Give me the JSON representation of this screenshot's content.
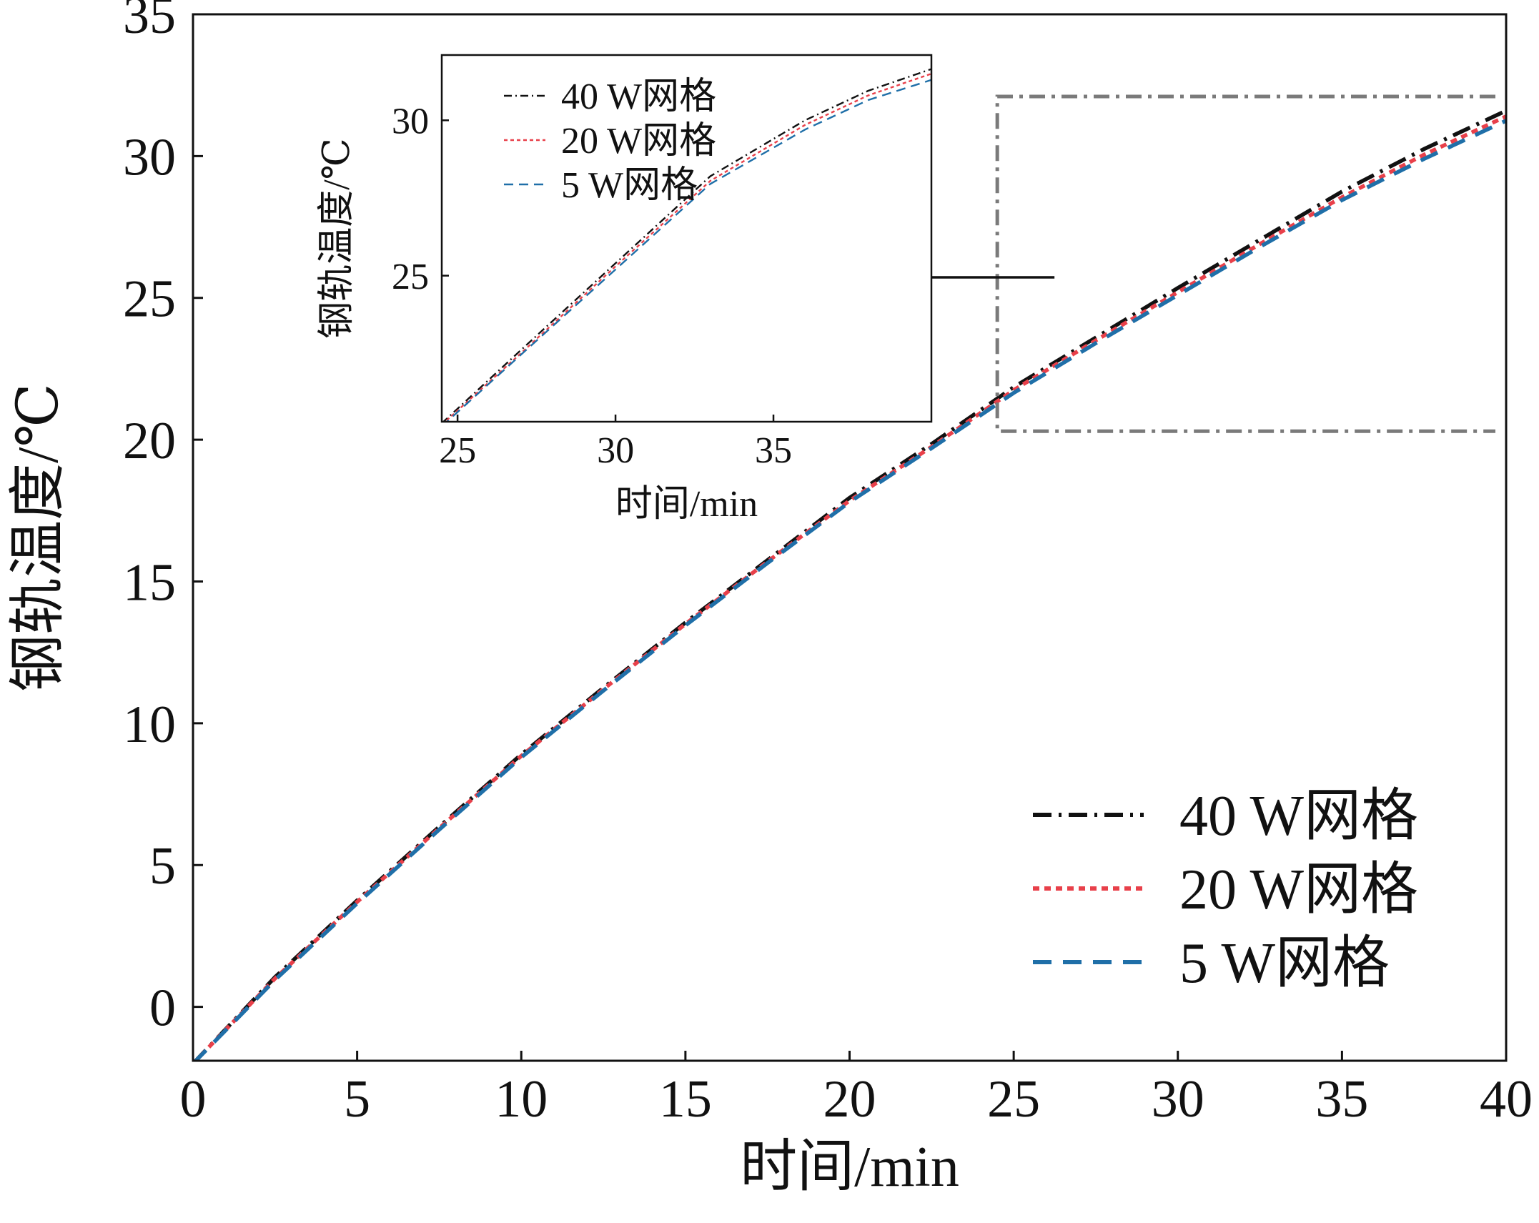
{
  "chart_data": [
    {
      "type": "line",
      "role": "main",
      "xlabel": "时间/min",
      "ylabel": "钢轨温度/℃",
      "xlim": [
        0,
        40
      ],
      "ylim": [
        -1.9,
        35
      ],
      "xticks": [
        "0",
        "5",
        "10",
        "15",
        "20",
        "25",
        "30",
        "35",
        "40"
      ],
      "yticks": [
        "0",
        "5",
        "10",
        "15",
        "20",
        "25",
        "30",
        "35"
      ],
      "legend_position": "bottom-right",
      "series": [
        {
          "name": "40 W网格",
          "color": "#111111",
          "style": "dash-dot",
          "x": [
            0,
            2.5,
            5,
            7.5,
            10,
            12.5,
            15,
            17.5,
            20,
            22.5,
            25,
            27.5,
            30,
            32.5,
            35,
            37.5,
            40
          ],
          "y": [
            -2.0,
            1.05,
            3.75,
            6.35,
            8.9,
            11.25,
            13.55,
            15.75,
            17.95,
            19.85,
            21.85,
            23.6,
            25.35,
            27.05,
            28.75,
            30.25,
            31.6
          ]
        },
        {
          "name": "20 W网格",
          "color": "#e8404a",
          "style": "dotted",
          "x": [
            0,
            2.5,
            5,
            7.5,
            10,
            12.5,
            15,
            17.5,
            20,
            22.5,
            25,
            27.5,
            30,
            32.5,
            35,
            37.5,
            40
          ],
          "y": [
            -2.0,
            1.0,
            3.7,
            6.3,
            8.85,
            11.2,
            13.5,
            15.7,
            17.85,
            19.75,
            21.75,
            23.5,
            25.2,
            26.9,
            28.55,
            30.05,
            31.4
          ]
        },
        {
          "name": "5 W网格",
          "color": "#1f6fa8",
          "style": "dashed",
          "x": [
            0,
            2.5,
            5,
            7.5,
            10,
            12.5,
            15,
            17.5,
            20,
            22.5,
            25,
            27.5,
            30,
            32.5,
            35,
            37.5,
            40
          ],
          "y": [
            -2.0,
            0.95,
            3.65,
            6.25,
            8.8,
            11.15,
            13.45,
            15.65,
            17.8,
            19.7,
            21.65,
            23.4,
            25.1,
            26.8,
            28.45,
            29.9,
            31.25
          ]
        }
      ],
      "zoom_region": {
        "x": [
          24.5,
          40
        ],
        "y": [
          20.3,
          32.1
        ]
      }
    },
    {
      "type": "line",
      "role": "inset",
      "xlabel": "时间/min",
      "ylabel": "钢轨温度/℃",
      "xlim": [
        24.5,
        40
      ],
      "ylim": [
        20.3,
        32.1
      ],
      "xticks": [
        "25",
        "30",
        "35"
      ],
      "yticks": [
        "25",
        "30"
      ],
      "legend_position": "top-left",
      "series": [
        {
          "name": "40 W网格",
          "color": "#111111",
          "style": "dash-dot",
          "x": [
            24.5,
            27,
            30,
            33,
            36,
            38,
            40
          ],
          "y": [
            20.25,
            22.6,
            25.4,
            28.2,
            30.0,
            30.95,
            31.65
          ]
        },
        {
          "name": "20 W网格",
          "color": "#e8404a",
          "style": "dotted",
          "x": [
            24.5,
            27,
            30,
            33,
            36,
            38,
            40
          ],
          "y": [
            20.2,
            22.5,
            25.3,
            28.05,
            29.85,
            30.8,
            31.5
          ]
        },
        {
          "name": "5 W网格",
          "color": "#1f6fa8",
          "style": "dashed",
          "x": [
            24.5,
            27,
            30,
            33,
            36,
            38,
            40
          ],
          "y": [
            20.15,
            22.45,
            25.2,
            27.95,
            29.7,
            30.65,
            31.3
          ]
        }
      ]
    }
  ]
}
